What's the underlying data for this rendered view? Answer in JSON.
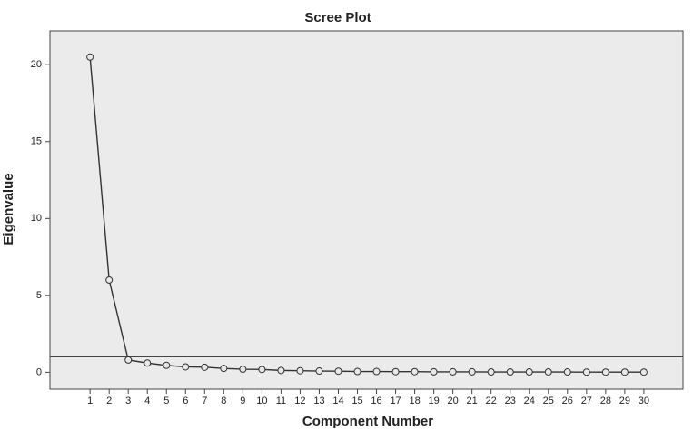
{
  "chart_data": {
    "type": "line",
    "title": "Scree Plot",
    "x_label": "Component Number",
    "y_label": "Eigenvalue",
    "x": [
      1,
      2,
      3,
      4,
      5,
      6,
      7,
      8,
      9,
      10,
      11,
      12,
      13,
      14,
      15,
      16,
      17,
      18,
      19,
      20,
      21,
      22,
      23,
      24,
      25,
      26,
      27,
      28,
      29,
      30
    ],
    "values": [
      20.5,
      6.0,
      0.8,
      0.6,
      0.45,
      0.35,
      0.33,
      0.25,
      0.2,
      0.18,
      0.12,
      0.1,
      0.08,
      0.07,
      0.05,
      0.05,
      0.04,
      0.04,
      0.03,
      0.03,
      0.03,
      0.02,
      0.02,
      0.02,
      0.02,
      0.02,
      0.01,
      0.01,
      0.01,
      0.01
    ],
    "color": "#333333",
    "plot_background": "#ebebeb",
    "reference_line": 1,
    "xlim": [
      -1.1,
      32.05
    ],
    "ylim": [
      -1.1,
      22.2
    ],
    "xticks": [
      1,
      2,
      3,
      4,
      5,
      6,
      7,
      8,
      9,
      10,
      11,
      12,
      13,
      14,
      15,
      16,
      17,
      18,
      19,
      20,
      21,
      22,
      23,
      24,
      25,
      26,
      27,
      28,
      29,
      30
    ],
    "yticks": [
      0,
      5,
      10,
      15,
      20
    ]
  }
}
